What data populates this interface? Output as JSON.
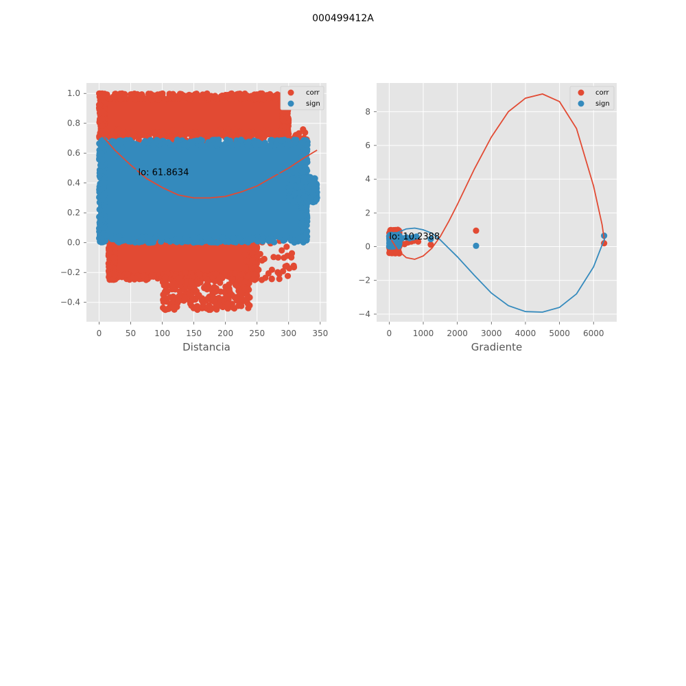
{
  "suptitle": "000499412A",
  "colors": {
    "corr": "#E24A33",
    "sign": "#348ABD",
    "axes_bg": "#E5E5E5",
    "grid": "#FFFFFF",
    "tick_text": "#555555"
  },
  "chart_data": [
    {
      "type": "scatter",
      "xlabel": "Distancia",
      "ylabel": "",
      "xlim": [
        -20,
        360
      ],
      "ylim": [
        -0.53,
        1.07
      ],
      "xticks": [
        0,
        50,
        100,
        150,
        200,
        250,
        300,
        350
      ],
      "xtick_labels": [
        "0",
        "50",
        "100",
        "150",
        "200",
        "250",
        "300",
        "350"
      ],
      "yticks": [
        -0.4,
        -0.2,
        0.0,
        0.2,
        0.4,
        0.6,
        0.8,
        1.0
      ],
      "ytick_labels": [
        "−0.4",
        "−0.2",
        "0.0",
        "0.2",
        "0.4",
        "0.6",
        "0.8",
        "1.0"
      ],
      "grid": true,
      "legend_position": "top-right",
      "series": [
        {
          "name": "corr",
          "color": "#E24A33",
          "description": "dense scatter",
          "blocks": [
            {
              "x": [
                0,
                300
              ],
              "y": [
                0.7,
                1.0
              ],
              "density": "high"
            },
            {
              "x": [
                10,
                330
              ],
              "y": [
                0.56,
                0.76
              ],
              "density": "medium"
            },
            {
              "x": [
                15,
                250
              ],
              "y": [
                -0.25,
                0.05
              ],
              "density": "high"
            },
            {
              "x": [
                100,
                240
              ],
              "y": [
                -0.45,
                -0.2
              ],
              "density": "medium"
            },
            {
              "x": [
                230,
                310
              ],
              "y": [
                -0.25,
                0.2
              ],
              "density": "low"
            }
          ],
          "fit_curve": {
            "x": [
              0,
              25,
              50,
              75,
              100,
              125,
              150,
              175,
              200,
              225,
              250,
              275,
              300,
              325,
              345
            ],
            "y": [
              0.74,
              0.62,
              0.52,
              0.43,
              0.37,
              0.32,
              0.3,
              0.3,
              0.31,
              0.34,
              0.38,
              0.44,
              0.5,
              0.57,
              0.62
            ]
          }
        },
        {
          "name": "sign",
          "color": "#348ABD",
          "description": "dense scatter",
          "blocks": [
            {
              "x": [
                0,
                330
              ],
              "y": [
                0.0,
                0.69
              ],
              "density": "high"
            },
            {
              "x": [
                300,
                345
              ],
              "y": [
                0.27,
                0.44
              ],
              "density": "medium"
            }
          ],
          "fit_curve": {
            "x": [
              0,
              25,
              50,
              75,
              100,
              125,
              150,
              175,
              200,
              225,
              250,
              275,
              300,
              325,
              345
            ],
            "y": [
              0.43,
              0.46,
              0.48,
              0.5,
              0.51,
              0.52,
              0.52,
              0.52,
              0.51,
              0.5,
              0.49,
              0.47,
              0.45,
              0.44,
              0.44
            ]
          }
        }
      ],
      "annotation": {
        "text": "lo: 61.8634",
        "x": 62,
        "y": 0.47
      }
    },
    {
      "type": "scatter",
      "xlabel": "Gradiente",
      "ylabel": "",
      "xlim": [
        -370,
        6680
      ],
      "ylim": [
        -4.45,
        9.7
      ],
      "xticks": [
        0,
        1000,
        2000,
        3000,
        4000,
        5000,
        6000
      ],
      "xtick_labels": [
        "0",
        "1000",
        "2000",
        "3000",
        "4000",
        "5000",
        "6000"
      ],
      "yticks": [
        -4,
        -2,
        0,
        2,
        4,
        6,
        8
      ],
      "ytick_labels": [
        "−4",
        "−2",
        "0",
        "2",
        "4",
        "6",
        "8"
      ],
      "grid": true,
      "legend_position": "top-right",
      "series": [
        {
          "name": "corr",
          "color": "#E24A33",
          "cluster": {
            "x": [
              0,
              300
            ],
            "y": [
              -0.4,
              1.0
            ]
          },
          "points": [
            {
              "x": 350,
              "y": 0.2
            },
            {
              "x": 450,
              "y": 0.15
            },
            {
              "x": 550,
              "y": 0.25
            },
            {
              "x": 650,
              "y": 0.3
            },
            {
              "x": 720,
              "y": 0.35
            },
            {
              "x": 850,
              "y": 0.3
            },
            {
              "x": 1220,
              "y": 0.12
            },
            {
              "x": 2550,
              "y": 0.95
            },
            {
              "x": 6310,
              "y": 0.2
            }
          ],
          "fit_curve": {
            "x": [
              0,
              250,
              500,
              750,
              1000,
              1250,
              1500,
              1750,
              2000,
              2500,
              3000,
              3500,
              4000,
              4500,
              5000,
              5500,
              6000,
              6250,
              6330
            ],
            "y": [
              0.6,
              -0.2,
              -0.65,
              -0.75,
              -0.55,
              -0.1,
              0.6,
              1.5,
              2.5,
              4.6,
              6.5,
              8.0,
              8.8,
              9.05,
              8.6,
              7.0,
              3.6,
              1.3,
              0.2
            ]
          }
        },
        {
          "name": "sign",
          "color": "#348ABD",
          "cluster": {
            "x": [
              0,
              300
            ],
            "y": [
              0.0,
              0.7
            ]
          },
          "points": [
            {
              "x": 380,
              "y": 0.5
            },
            {
              "x": 500,
              "y": 0.55
            },
            {
              "x": 600,
              "y": 0.5
            },
            {
              "x": 700,
              "y": 0.55
            },
            {
              "x": 800,
              "y": 0.6
            },
            {
              "x": 1220,
              "y": 0.45
            },
            {
              "x": 2550,
              "y": 0.05
            },
            {
              "x": 6310,
              "y": 0.65
            }
          ],
          "fit_curve": {
            "x": [
              0,
              250,
              500,
              750,
              1000,
              1250,
              1500,
              1750,
              2000,
              2500,
              3000,
              3500,
              4000,
              4500,
              5000,
              5500,
              6000,
              6250,
              6330
            ],
            "y": [
              0.3,
              0.85,
              1.05,
              1.1,
              1.0,
              0.8,
              0.4,
              -0.1,
              -0.6,
              -1.7,
              -2.75,
              -3.5,
              -3.85,
              -3.88,
              -3.6,
              -2.8,
              -1.2,
              0.1,
              0.5
            ]
          }
        }
      ],
      "annotation": {
        "text": "lo: 10.2388",
        "x": 0,
        "y": 0.6
      }
    }
  ]
}
